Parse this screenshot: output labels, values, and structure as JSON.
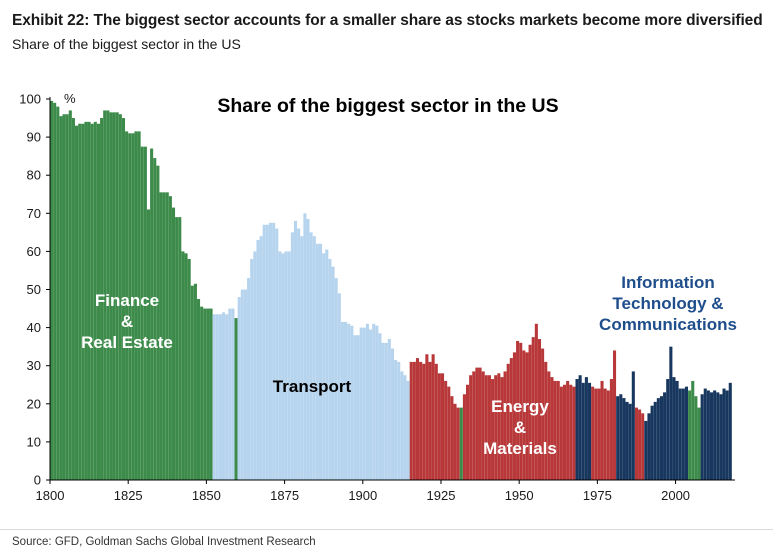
{
  "exhibit": {
    "title": "Exhibit 22: The biggest sector accounts for a smaller share as stocks markets become more diversified",
    "subtitle": "Share of the biggest sector in the US",
    "source": "Source: GFD, Goldman Sachs Global Investment Research"
  },
  "chart_data": {
    "type": "bar",
    "title": "Share of the biggest sector in the US",
    "ylabel": "%",
    "xlabel": "",
    "xlim": [
      1800,
      2019
    ],
    "ylim": [
      0,
      100
    ],
    "x_ticks": [
      "1800",
      "1825",
      "1850",
      "1875",
      "1900",
      "1925",
      "1950",
      "1975",
      "2000"
    ],
    "y_ticks": [
      "0",
      "10",
      "20",
      "30",
      "40",
      "50",
      "60",
      "70",
      "80",
      "90",
      "100"
    ],
    "grid": false,
    "legend": "none",
    "colors": {
      "finance": "#3d8b4a",
      "transport": "#b6d4ee",
      "energy": "#b8383a",
      "it": "#17375e"
    },
    "segment_labels": [
      {
        "id": "finance",
        "lines": [
          "Finance",
          "&",
          "Real Estate"
        ]
      },
      {
        "id": "transport",
        "lines": [
          "Transport"
        ]
      },
      {
        "id": "energy",
        "lines": [
          "Energy",
          "&",
          "Materials"
        ]
      },
      {
        "id": "it",
        "lines": [
          "Information",
          "Technology &",
          "Communications"
        ]
      }
    ],
    "series": [
      {
        "id": "finance",
        "x": [
          1800,
          1801,
          1802,
          1803,
          1804,
          1805,
          1806,
          1807,
          1808,
          1809,
          1810,
          1811,
          1812,
          1813,
          1814,
          1815,
          1816,
          1817,
          1818,
          1819,
          1820,
          1821,
          1822,
          1823,
          1824,
          1825,
          1826,
          1827,
          1828,
          1829,
          1830,
          1831,
          1832,
          1833,
          1834,
          1835,
          1836,
          1837,
          1838,
          1839,
          1840,
          1841,
          1842,
          1843,
          1844,
          1845,
          1846,
          1847,
          1848,
          1849,
          1850,
          1851,
          1859
        ],
        "values": [
          99.5,
          99,
          98,
          95.5,
          96,
          96,
          97,
          95,
          93,
          93.5,
          93.5,
          94,
          94,
          93.5,
          94,
          93.5,
          95,
          97,
          97,
          96.5,
          96.5,
          96.5,
          96,
          95,
          91.5,
          91,
          91,
          91.5,
          91.5,
          87.5,
          87.5,
          71,
          87,
          84.5,
          82.5,
          75.5,
          75.5,
          75.5,
          74.5,
          71.5,
          69,
          69,
          60,
          59.5,
          58,
          51,
          51.5,
          47.5,
          45.5,
          45,
          45,
          45,
          42.5
        ]
      },
      {
        "id": "transport",
        "x": [
          1852,
          1853,
          1854,
          1855,
          1856,
          1857,
          1858,
          1860,
          1861,
          1862,
          1863,
          1864,
          1865,
          1866,
          1867,
          1868,
          1869,
          1870,
          1871,
          1872,
          1873,
          1874,
          1875,
          1876,
          1877,
          1878,
          1879,
          1880,
          1881,
          1882,
          1883,
          1884,
          1885,
          1886,
          1887,
          1888,
          1889,
          1890,
          1891,
          1892,
          1893,
          1894,
          1895,
          1896,
          1897,
          1898,
          1899,
          1900,
          1901,
          1902,
          1903,
          1904,
          1905,
          1906,
          1907,
          1908,
          1909,
          1910,
          1911,
          1912,
          1913,
          1914
        ],
        "values": [
          43.5,
          43.5,
          43.5,
          44,
          43.5,
          45,
          45,
          48,
          50,
          50,
          53,
          58,
          60,
          63,
          64,
          67,
          67,
          67.5,
          67.5,
          66,
          60,
          59.5,
          60,
          60,
          65,
          68,
          66,
          64,
          70,
          68.5,
          65,
          64,
          62,
          62,
          59.5,
          60.5,
          58,
          56,
          53,
          49,
          41.5,
          41.5,
          41,
          40.5,
          38,
          38,
          40,
          40,
          41,
          39.5,
          41,
          40.5,
          38.5,
          36,
          36,
          37,
          34.5,
          31.5,
          31,
          28.5,
          27.5,
          26
        ]
      },
      {
        "id": "energy",
        "x": [
          1915,
          1916,
          1917,
          1918,
          1919,
          1920,
          1921,
          1922,
          1923,
          1924,
          1925,
          1926,
          1927,
          1928,
          1929,
          1930,
          1932,
          1933,
          1934,
          1935,
          1936,
          1937,
          1938,
          1939,
          1940,
          1941,
          1942,
          1943,
          1944,
          1945,
          1946,
          1947,
          1948,
          1949,
          1950,
          1951,
          1952,
          1953,
          1954,
          1955,
          1956,
          1957,
          1958,
          1959,
          1960,
          1961,
          1962,
          1963,
          1964,
          1965,
          1966,
          1967,
          1973,
          1974,
          1975,
          1976,
          1977,
          1978,
          1979,
          1980,
          1987,
          1988,
          1989
        ],
        "values": [
          31,
          31,
          32,
          31,
          30.5,
          33,
          31,
          33,
          30.5,
          28,
          28,
          26,
          24.5,
          22,
          20,
          19,
          22.5,
          25,
          27.5,
          28.5,
          29.5,
          29.5,
          28.5,
          27.5,
          27.5,
          26.5,
          27.5,
          28,
          27,
          28.5,
          30.5,
          32,
          33.5,
          36.5,
          36,
          34,
          33.5,
          35.5,
          37.5,
          41,
          37,
          34.5,
          31,
          28.5,
          27,
          26,
          26,
          24.5,
          25,
          26,
          25,
          24.5,
          24.5,
          24,
          24,
          26,
          24,
          23.5,
          26.5,
          34,
          19,
          18.5,
          17.5
        ]
      },
      {
        "id": "finance",
        "x": [
          1931,
          2004,
          2005,
          2006,
          2007
        ],
        "values": [
          19,
          23.5,
          26,
          22,
          19
        ]
      },
      {
        "id": "it",
        "x": [
          1968,
          1969,
          1970,
          1971,
          1972,
          1981,
          1982,
          1983,
          1984,
          1985,
          1986,
          1990,
          1991,
          1992,
          1993,
          1994,
          1995,
          1996,
          1997,
          1998,
          1999,
          2000,
          2001,
          2002,
          2003,
          2008,
          2009,
          2010,
          2011,
          2012,
          2013,
          2014,
          2015,
          2016,
          2017
        ],
        "values": [
          26.5,
          27.5,
          25.5,
          27,
          25.5,
          22,
          22.5,
          21.5,
          20.5,
          20,
          28.5,
          15.5,
          17.5,
          19.5,
          20.5,
          21.5,
          22,
          23,
          26.5,
          35,
          27,
          26,
          24,
          24,
          24.5,
          22.5,
          24,
          23.5,
          23,
          23.5,
          23,
          22.5,
          24,
          23.5,
          25.5
        ]
      }
    ]
  }
}
